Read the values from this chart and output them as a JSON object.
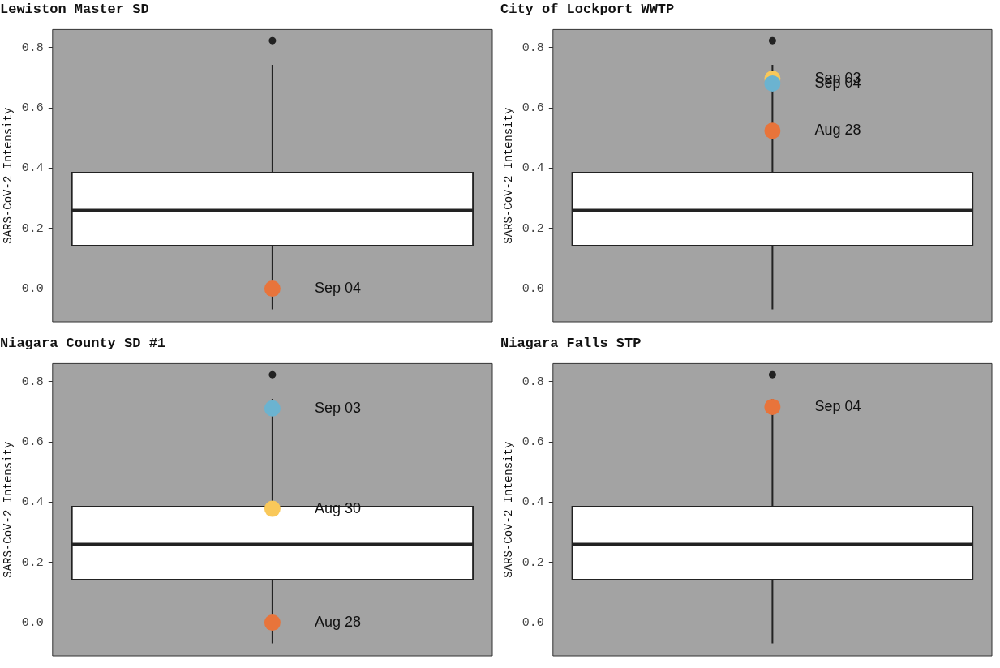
{
  "chart_data": [
    {
      "type": "box",
      "title": "Lewiston Master SD",
      "ylabel": "SARS-CoV-2 Intensity",
      "categories": [
        null
      ],
      "ylim": [
        -0.11,
        0.86
      ],
      "yticks": [
        {
          "value": 0,
          "label": "0.0"
        },
        {
          "value": 0.2,
          "label": "0.2"
        },
        {
          "value": 0.4,
          "label": "0.4"
        },
        {
          "value": 0.6,
          "label": "0.6"
        },
        {
          "value": 0.8,
          "label": "0.8"
        }
      ],
      "tick_labels": "y",
      "boxes": [
        {
          "low": -0.068,
          "q1": 0.143,
          "median": 0.26,
          "q3": 0.385,
          "high": 0.743,
          "outliers": [
            0.823
          ]
        }
      ],
      "series": [
        {
          "type": "scatter",
          "name": "Sep 04",
          "color": "#e8743b",
          "values": [
            0.0
          ]
        }
      ]
    },
    {
      "type": "box",
      "title": "City of Lockport WWTP",
      "ylabel": "SARS-CoV-2 Intensity",
      "categories": [
        null
      ],
      "ylim": [
        -0.11,
        0.86
      ],
      "yticks": [
        {
          "value": 0,
          "label": "0.0"
        },
        {
          "value": 0.2,
          "label": "0.2"
        },
        {
          "value": 0.4,
          "label": "0.4"
        },
        {
          "value": 0.6,
          "label": "0.6"
        },
        {
          "value": 0.8,
          "label": "0.8"
        }
      ],
      "tick_labels": "y",
      "boxes": [
        {
          "low": -0.068,
          "q1": 0.143,
          "median": 0.26,
          "q3": 0.385,
          "high": 0.743,
          "outliers": [
            0.823
          ]
        }
      ],
      "series": [
        {
          "type": "scatter",
          "name": "Sep 03",
          "color": "#f9c85a",
          "values": [
            0.697
          ]
        },
        {
          "type": "scatter",
          "name": "Sep 04",
          "color": "#6bb3d0",
          "values": [
            0.681
          ]
        },
        {
          "type": "scatter",
          "name": "Aug 28",
          "color": "#e8743b",
          "values": [
            0.524
          ]
        }
      ]
    },
    {
      "type": "box",
      "title": "Niagara County SD #1",
      "ylabel": "SARS-CoV-2 Intensity",
      "categories": [
        null
      ],
      "ylim": [
        -0.11,
        0.86
      ],
      "yticks": [
        {
          "value": 0,
          "label": "0.0"
        },
        {
          "value": 0.2,
          "label": "0.2"
        },
        {
          "value": 0.4,
          "label": "0.4"
        },
        {
          "value": 0.6,
          "label": "0.6"
        },
        {
          "value": 0.8,
          "label": "0.8"
        }
      ],
      "tick_labels": "y",
      "boxes": [
        {
          "low": -0.068,
          "q1": 0.143,
          "median": 0.26,
          "q3": 0.385,
          "high": 0.743,
          "outliers": [
            0.823
          ]
        }
      ],
      "series": [
        {
          "type": "scatter",
          "name": "Sep 03",
          "color": "#6bb3d0",
          "values": [
            0.711
          ]
        },
        {
          "type": "scatter",
          "name": "Aug 30",
          "color": "#f9c85a",
          "values": [
            0.378
          ]
        },
        {
          "type": "scatter",
          "name": "Aug 28",
          "color": "#e8743b",
          "values": [
            0.0
          ]
        }
      ]
    },
    {
      "type": "box",
      "title": "Niagara Falls STP",
      "ylabel": "SARS-CoV-2 Intensity",
      "categories": [
        null
      ],
      "ylim": [
        -0.11,
        0.86
      ],
      "yticks": [
        {
          "value": 0,
          "label": "0.0"
        },
        {
          "value": 0.2,
          "label": "0.2"
        },
        {
          "value": 0.4,
          "label": "0.4"
        },
        {
          "value": 0.6,
          "label": "0.6"
        },
        {
          "value": 0.8,
          "label": "0.8"
        }
      ],
      "tick_labels": "y",
      "boxes": [
        {
          "low": -0.068,
          "q1": 0.143,
          "median": 0.26,
          "q3": 0.385,
          "high": 0.743,
          "outliers": [
            0.823
          ]
        }
      ],
      "series": [
        {
          "type": "scatter",
          "name": "Sep 04",
          "color": "#e8743b",
          "values": [
            0.716
          ]
        }
      ]
    }
  ]
}
